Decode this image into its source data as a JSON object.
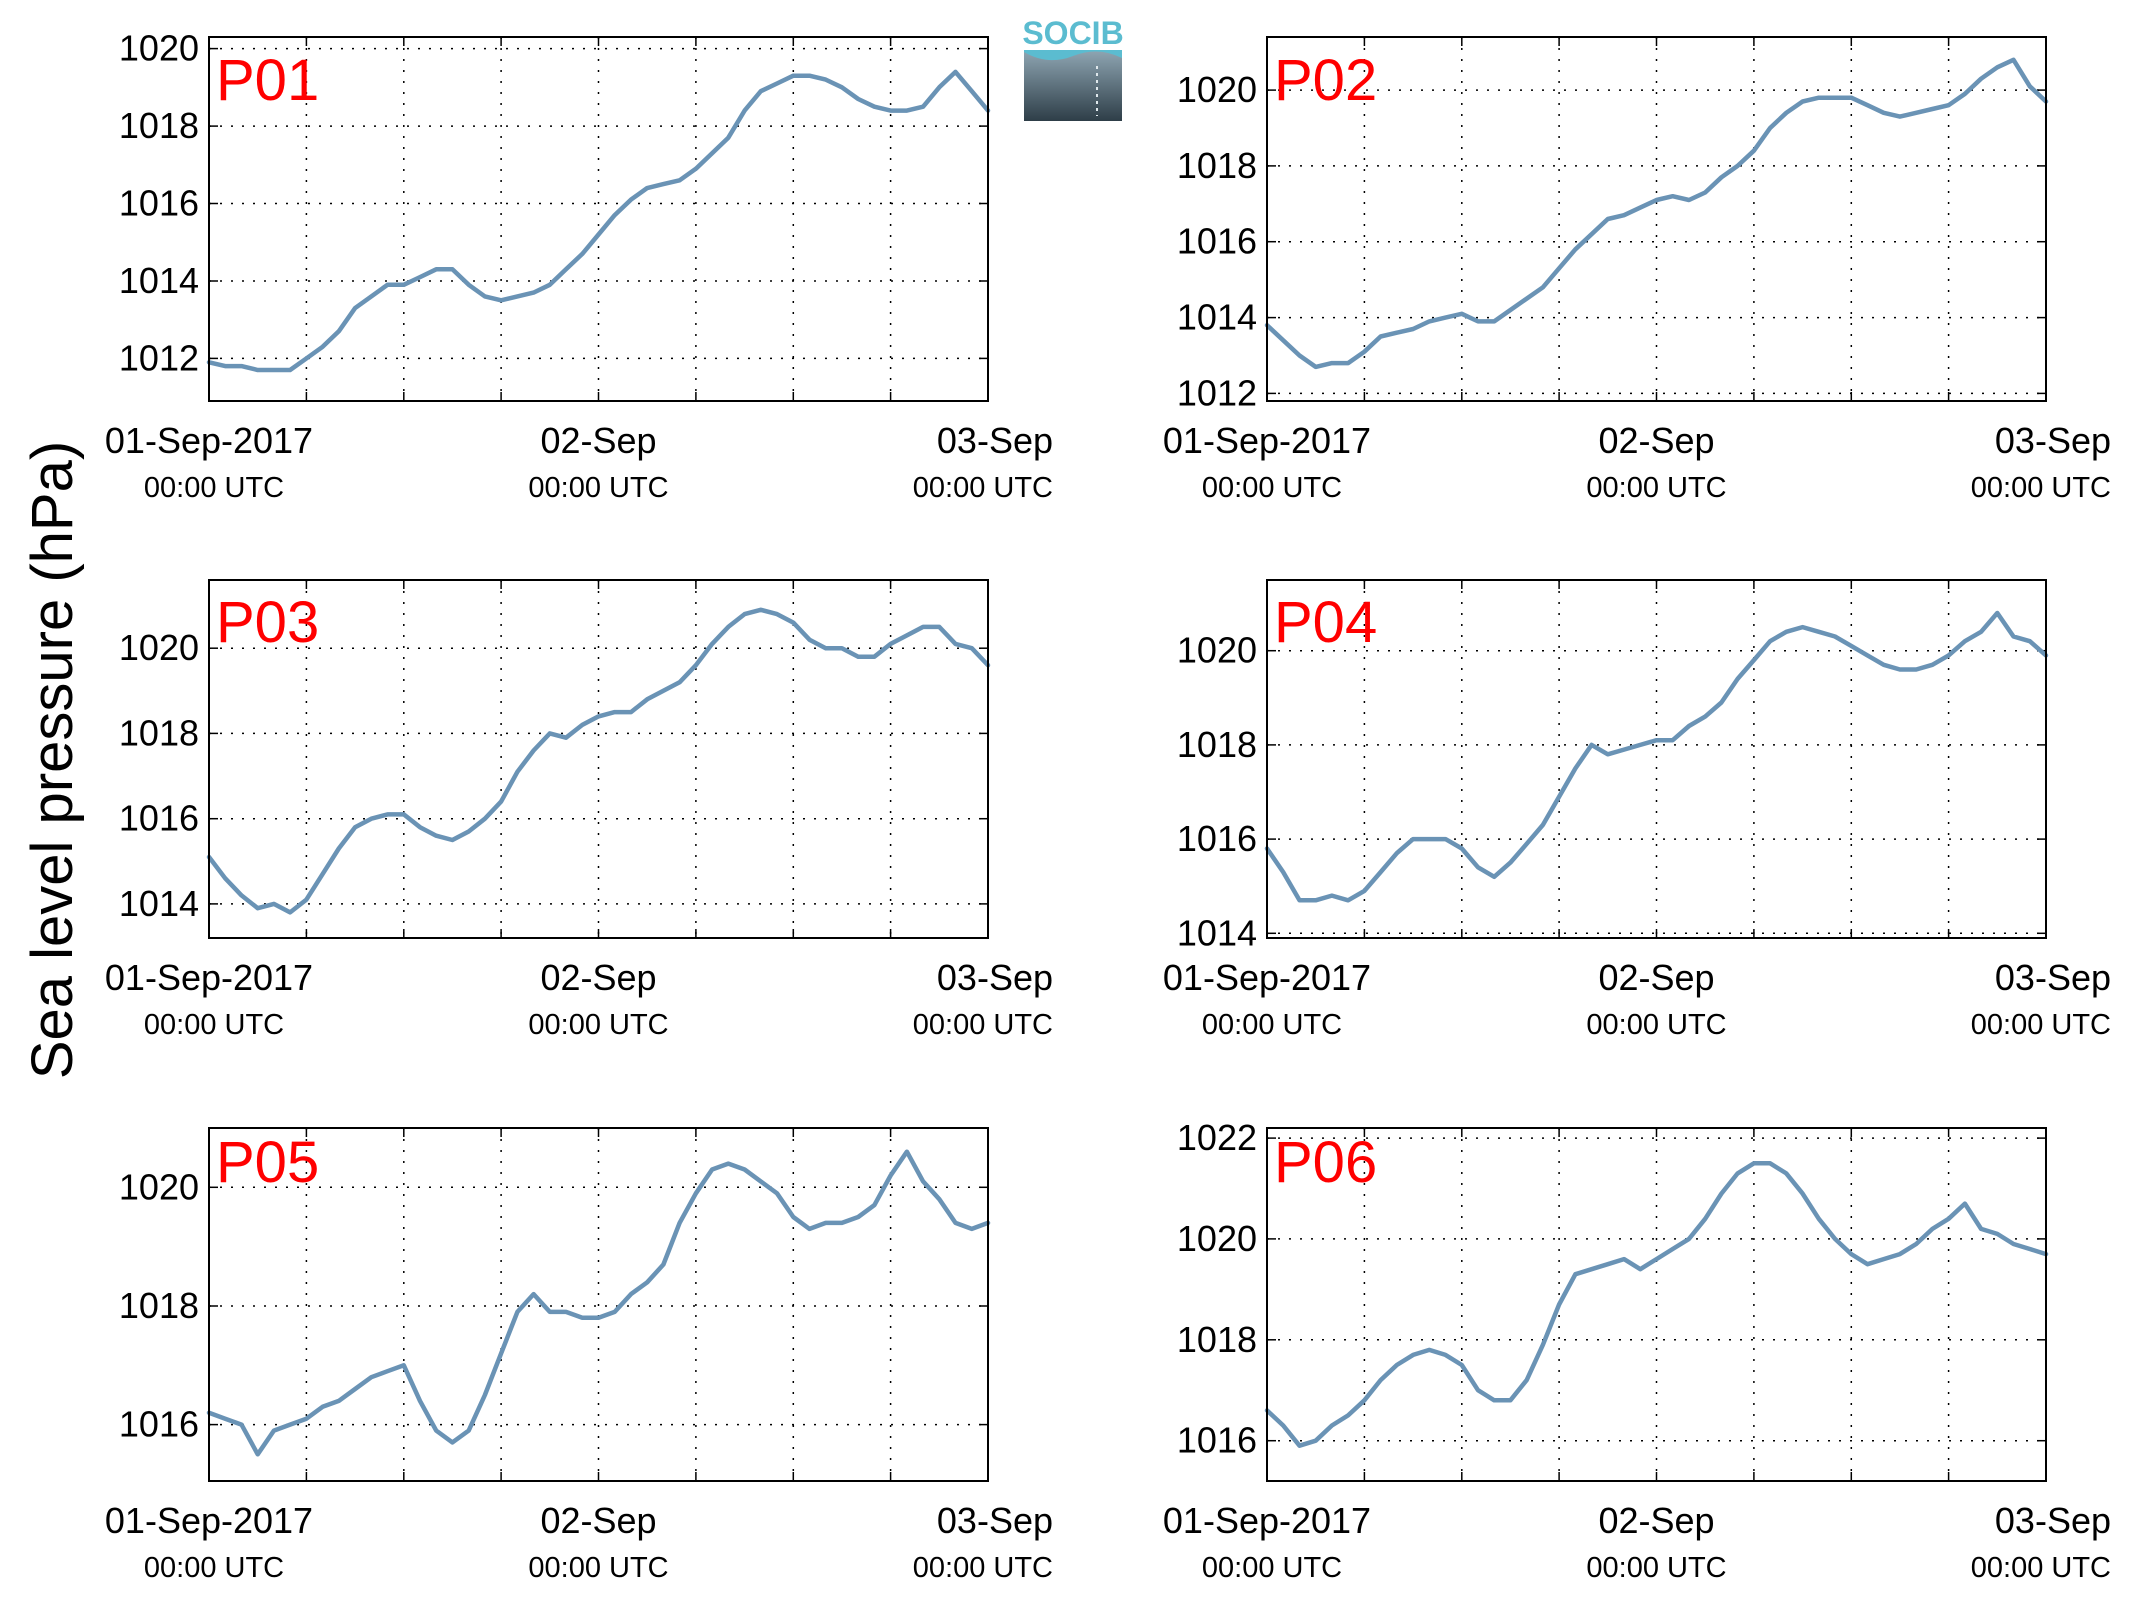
{
  "figure": {
    "ylabel": "Sea level pressure (hPa)",
    "logo_text": "SOCIB",
    "colors": {
      "line": "#6a93b5",
      "panel_label": "#ff0000",
      "logo_top": "#5bbcd0",
      "logo_bottom": "#2e3e48"
    }
  },
  "chart_data": [
    {
      "type": "line",
      "title": "P01",
      "x_start": "01-Sep-2017 00:00 UTC",
      "x_unit": "hours since 01-Sep-2017 00:00 UTC",
      "xlim": [
        0,
        48
      ],
      "ylim": [
        1010.9,
        1020.3
      ],
      "yticks": [
        1012,
        1014,
        1016,
        1018,
        1020
      ],
      "xticks": [
        0,
        24,
        48
      ],
      "xtick_labels": [
        "01-Sep-2017",
        "02-Sep",
        "03-Sep"
      ],
      "xtick_sublabels": [
        "00:00 UTC",
        "00:00 UTC",
        "00:00 UTC"
      ],
      "grid": true,
      "series": [
        {
          "x": [
            0,
            1,
            2,
            3,
            4,
            5,
            6,
            7,
            8,
            9,
            10,
            11,
            12,
            13,
            14,
            15,
            16,
            17,
            18,
            19,
            20,
            21,
            22,
            23,
            24,
            25,
            26,
            27,
            28,
            29,
            30,
            31,
            32,
            33,
            34,
            35,
            36,
            37,
            38,
            39,
            40,
            41,
            42,
            43,
            44,
            45,
            46,
            47,
            48
          ],
          "y": [
            1011.9,
            1011.8,
            1011.8,
            1011.7,
            1011.7,
            1011.7,
            1012.0,
            1012.3,
            1012.7,
            1013.3,
            1013.6,
            1013.9,
            1013.9,
            1014.1,
            1014.3,
            1014.3,
            1013.9,
            1013.6,
            1013.5,
            1013.6,
            1013.7,
            1013.9,
            1014.3,
            1014.7,
            1015.2,
            1015.7,
            1016.1,
            1016.4,
            1016.5,
            1016.6,
            1016.9,
            1017.3,
            1017.7,
            1018.4,
            1018.9,
            1019.1,
            1019.3,
            1019.3,
            1019.2,
            1019.0,
            1018.7,
            1018.5,
            1018.4,
            1018.4,
            1018.5,
            1019.0,
            1019.4,
            1018.9,
            1018.4
          ]
        }
      ]
    },
    {
      "type": "line",
      "title": "P02",
      "x_start": "01-Sep-2017 00:00 UTC",
      "x_unit": "hours since 01-Sep-2017 00:00 UTC",
      "xlim": [
        0,
        48
      ],
      "ylim": [
        1011.8,
        1021.4
      ],
      "yticks": [
        1012,
        1014,
        1016,
        1018,
        1020
      ],
      "xticks": [
        0,
        24,
        48
      ],
      "xtick_labels": [
        "01-Sep-2017",
        "02-Sep",
        "03-Sep"
      ],
      "xtick_sublabels": [
        "00:00 UTC",
        "00:00 UTC",
        "00:00 UTC"
      ],
      "grid": true,
      "series": [
        {
          "x": [
            0,
            1,
            2,
            3,
            4,
            5,
            6,
            7,
            8,
            9,
            10,
            11,
            12,
            13,
            14,
            15,
            16,
            17,
            18,
            19,
            20,
            21,
            22,
            23,
            24,
            25,
            26,
            27,
            28,
            29,
            30,
            31,
            32,
            33,
            34,
            35,
            36,
            37,
            38,
            39,
            40,
            41,
            42,
            43,
            44,
            45,
            46,
            47,
            48
          ],
          "y": [
            1013.8,
            1013.4,
            1013.0,
            1012.7,
            1012.8,
            1012.8,
            1013.1,
            1013.5,
            1013.6,
            1013.7,
            1013.9,
            1014.0,
            1014.1,
            1013.9,
            1013.9,
            1014.2,
            1014.5,
            1014.8,
            1015.3,
            1015.8,
            1016.2,
            1016.6,
            1016.7,
            1016.9,
            1017.1,
            1017.2,
            1017.1,
            1017.3,
            1017.7,
            1018.0,
            1018.4,
            1019.0,
            1019.4,
            1019.7,
            1019.8,
            1019.8,
            1019.8,
            1019.6,
            1019.4,
            1019.3,
            1019.4,
            1019.5,
            1019.6,
            1019.9,
            1020.3,
            1020.6,
            1020.8,
            1020.1,
            1019.7
          ]
        }
      ]
    },
    {
      "type": "line",
      "title": "P03",
      "x_start": "01-Sep-2017 00:00 UTC",
      "x_unit": "hours since 01-Sep-2017 00:00 UTC",
      "xlim": [
        0,
        48
      ],
      "ylim": [
        1013.2,
        1021.6
      ],
      "yticks": [
        1014,
        1016,
        1018,
        1020
      ],
      "xticks": [
        0,
        24,
        48
      ],
      "xtick_labels": [
        "01-Sep-2017",
        "02-Sep",
        "03-Sep"
      ],
      "xtick_sublabels": [
        "00:00 UTC",
        "00:00 UTC",
        "00:00 UTC"
      ],
      "grid": true,
      "series": [
        {
          "x": [
            0,
            1,
            2,
            3,
            4,
            5,
            6,
            7,
            8,
            9,
            10,
            11,
            12,
            13,
            14,
            15,
            16,
            17,
            18,
            19,
            20,
            21,
            22,
            23,
            24,
            25,
            26,
            27,
            28,
            29,
            30,
            31,
            32,
            33,
            34,
            35,
            36,
            37,
            38,
            39,
            40,
            41,
            42,
            43,
            44,
            45,
            46,
            47,
            48
          ],
          "y": [
            1015.1,
            1014.6,
            1014.2,
            1013.9,
            1014.0,
            1013.8,
            1014.1,
            1014.7,
            1015.3,
            1015.8,
            1016.0,
            1016.1,
            1016.1,
            1015.8,
            1015.6,
            1015.5,
            1015.7,
            1016.0,
            1016.4,
            1017.1,
            1017.6,
            1018.0,
            1017.9,
            1018.2,
            1018.4,
            1018.5,
            1018.5,
            1018.8,
            1019.0,
            1019.2,
            1019.6,
            1020.1,
            1020.5,
            1020.8,
            1020.9,
            1020.8,
            1020.6,
            1020.2,
            1020.0,
            1020.0,
            1019.8,
            1019.8,
            1020.1,
            1020.3,
            1020.5,
            1020.5,
            1020.1,
            1020.0,
            1019.6
          ]
        }
      ]
    },
    {
      "type": "line",
      "title": "P04",
      "x_start": "01-Sep-2017 00:00 UTC",
      "x_unit": "hours since 01-Sep-2017 00:00 UTC",
      "xlim": [
        0,
        48
      ],
      "ylim": [
        1013.9,
        1021.5
      ],
      "yticks": [
        1014,
        1016,
        1018,
        1020
      ],
      "xticks": [
        0,
        24,
        48
      ],
      "xtick_labels": [
        "01-Sep-2017",
        "02-Sep",
        "03-Sep"
      ],
      "xtick_sublabels": [
        "00:00 UTC",
        "00:00 UTC",
        "00:00 UTC"
      ],
      "grid": true,
      "series": [
        {
          "x": [
            0,
            1,
            2,
            3,
            4,
            5,
            6,
            7,
            8,
            9,
            10,
            11,
            12,
            13,
            14,
            15,
            16,
            17,
            18,
            19,
            20,
            21,
            22,
            23,
            24,
            25,
            26,
            27,
            28,
            29,
            30,
            31,
            32,
            33,
            34,
            35,
            36,
            37,
            38,
            39,
            40,
            41,
            42,
            43,
            44,
            45,
            46,
            47,
            48
          ],
          "y": [
            1015.8,
            1015.3,
            1014.7,
            1014.7,
            1014.8,
            1014.7,
            1014.9,
            1015.3,
            1015.7,
            1016.0,
            1016.0,
            1016.0,
            1015.8,
            1015.4,
            1015.2,
            1015.5,
            1015.9,
            1016.3,
            1016.9,
            1017.5,
            1018.0,
            1017.8,
            1017.9,
            1018.0,
            1018.1,
            1018.1,
            1018.4,
            1018.6,
            1018.9,
            1019.4,
            1019.8,
            1020.2,
            1020.4,
            1020.5,
            1020.4,
            1020.3,
            1020.1,
            1019.9,
            1019.7,
            1019.6,
            1019.6,
            1019.7,
            1019.9,
            1020.2,
            1020.4,
            1020.8,
            1020.3,
            1020.2,
            1019.9
          ]
        }
      ]
    },
    {
      "type": "line",
      "title": "P05",
      "x_start": "01-Sep-2017 00:00 UTC",
      "x_unit": "hours since 01-Sep-2017 00:00 UTC",
      "xlim": [
        0,
        48
      ],
      "ylim": [
        1015.05,
        1021.0
      ],
      "yticks": [
        1016,
        1018,
        1020
      ],
      "xticks": [
        0,
        24,
        48
      ],
      "xtick_labels": [
        "01-Sep-2017",
        "02-Sep",
        "03-Sep"
      ],
      "xtick_sublabels": [
        "00:00 UTC",
        "00:00 UTC",
        "00:00 UTC"
      ],
      "grid": true,
      "series": [
        {
          "x": [
            0,
            1,
            2,
            3,
            4,
            5,
            6,
            7,
            8,
            9,
            10,
            11,
            12,
            13,
            14,
            15,
            16,
            17,
            18,
            19,
            20,
            21,
            22,
            23,
            24,
            25,
            26,
            27,
            28,
            29,
            30,
            31,
            32,
            33,
            34,
            35,
            36,
            37,
            38,
            39,
            40,
            41,
            42,
            43,
            44,
            45,
            46,
            47,
            48
          ],
          "y": [
            1016.2,
            1016.1,
            1016.0,
            1015.5,
            1015.9,
            1016.0,
            1016.1,
            1016.3,
            1016.4,
            1016.6,
            1016.8,
            1016.9,
            1017.0,
            1016.4,
            1015.9,
            1015.7,
            1015.9,
            1016.5,
            1017.2,
            1017.9,
            1018.2,
            1017.9,
            1017.9,
            1017.8,
            1017.8,
            1017.9,
            1018.2,
            1018.4,
            1018.7,
            1019.4,
            1019.9,
            1020.3,
            1020.4,
            1020.3,
            1020.1,
            1019.9,
            1019.5,
            1019.3,
            1019.4,
            1019.4,
            1019.5,
            1019.7,
            1020.2,
            1020.6,
            1020.1,
            1019.8,
            1019.4,
            1019.3,
            1019.4
          ]
        }
      ]
    },
    {
      "type": "line",
      "title": "P06",
      "x_start": "01-Sep-2017 00:00 UTC",
      "x_unit": "hours since 01-Sep-2017 00:00 UTC",
      "xlim": [
        0,
        48
      ],
      "ylim": [
        1015.2,
        1022.2
      ],
      "yticks": [
        1016,
        1018,
        1020,
        1022
      ],
      "xticks": [
        0,
        24,
        48
      ],
      "xtick_labels": [
        "01-Sep-2017",
        "02-Sep",
        "03-Sep"
      ],
      "xtick_sublabels": [
        "00:00 UTC",
        "00:00 UTC",
        "00:00 UTC"
      ],
      "grid": true,
      "series": [
        {
          "x": [
            0,
            1,
            2,
            3,
            4,
            5,
            6,
            7,
            8,
            9,
            10,
            11,
            12,
            13,
            14,
            15,
            16,
            17,
            18,
            19,
            20,
            21,
            22,
            23,
            24,
            25,
            26,
            27,
            28,
            29,
            30,
            31,
            32,
            33,
            34,
            35,
            36,
            37,
            38,
            39,
            40,
            41,
            42,
            43,
            44,
            45,
            46,
            47,
            48
          ],
          "y": [
            1016.6,
            1016.3,
            1015.9,
            1016.0,
            1016.3,
            1016.5,
            1016.8,
            1017.2,
            1017.5,
            1017.7,
            1017.8,
            1017.7,
            1017.5,
            1017.0,
            1016.8,
            1016.8,
            1017.2,
            1017.9,
            1018.7,
            1019.3,
            1019.4,
            1019.5,
            1019.6,
            1019.4,
            1019.6,
            1019.8,
            1020.0,
            1020.4,
            1020.9,
            1021.3,
            1021.5,
            1021.5,
            1021.3,
            1020.9,
            1020.4,
            1020.0,
            1019.7,
            1019.5,
            1019.6,
            1019.7,
            1019.9,
            1020.2,
            1020.4,
            1020.7,
            1020.2,
            1020.1,
            1019.9,
            1019.8,
            1019.7
          ]
        }
      ]
    }
  ]
}
